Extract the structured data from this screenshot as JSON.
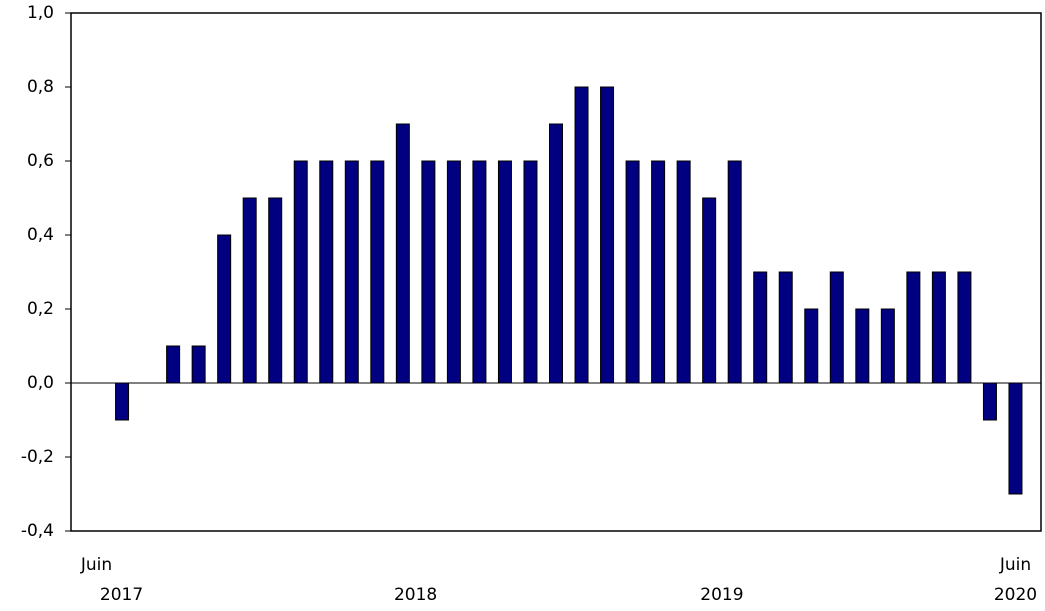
{
  "chart_data": {
    "type": "bar",
    "categories": [
      "Juin",
      null,
      null,
      null,
      null,
      null,
      null,
      null,
      null,
      null,
      null,
      null,
      null,
      null,
      null,
      null,
      null,
      null,
      null,
      null,
      null,
      null,
      null,
      null,
      null,
      null,
      null,
      null,
      null,
      null,
      null,
      null,
      null,
      null,
      null,
      null,
      "Juin"
    ],
    "year_labels": [
      "2017",
      "2018",
      "2019",
      "2020"
    ],
    "values": [
      0,
      -0.1,
      0,
      0.1,
      0.1,
      0.4,
      0.5,
      0.5,
      0.6,
      0.6,
      0.6,
      0.6,
      0.7,
      0.6,
      0.6,
      0.6,
      0.6,
      0.6,
      0.7,
      0.8,
      0.8,
      0.6,
      0.6,
      0.6,
      0.5,
      0.6,
      0.3,
      0.3,
      0.2,
      0.3,
      0.2,
      0.2,
      0.3,
      0.3,
      0.3,
      -0.1,
      -0.3
    ],
    "color": "#000080",
    "ylim": [
      -0.4,
      1.0
    ],
    "yticks": [
      {
        "value": -0.4,
        "label": "-0,4"
      },
      {
        "value": -0.2,
        "label": "-0,2"
      },
      {
        "value": 0,
        "label": "0,0"
      },
      {
        "value": 0.2,
        "label": "0,2"
      },
      {
        "value": 0.4,
        "label": "0,4"
      },
      {
        "value": 0.6,
        "label": "0,6"
      },
      {
        "value": 0.8,
        "label": "0,8"
      },
      {
        "value": 1.0,
        "label": "1,0"
      }
    ],
    "grid": false
  }
}
